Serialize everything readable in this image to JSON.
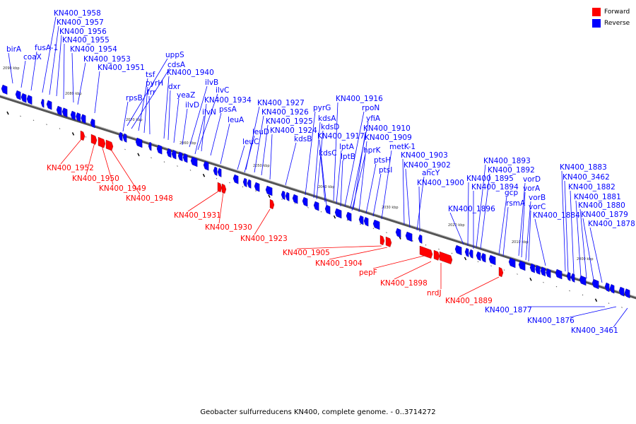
{
  "caption": "Geobacter sulfurreducens KN400, complete genome. - 0..3714272",
  "legend": [
    {
      "label": "Forward",
      "color": "#ff0000"
    },
    {
      "label": "Reverse",
      "color": "#0000ff"
    }
  ],
  "colors": {
    "forward": "#ff0000",
    "reverse": "#0000ff",
    "backbone": "#666666"
  },
  "scale_labels": [
    "2090 kbp",
    "2080 kbp",
    "2070 kbp",
    "2060 kbp",
    "2050 kbp",
    "2040 kbp",
    "2030 kbp",
    "2020 kbp",
    "2010 kbp",
    "2000 kbp"
  ],
  "reverse_genes": [
    "birA",
    "coaX",
    "fusA-1",
    "KN400_1958",
    "KN400_1957",
    "KN400_1956",
    "KN400_1955",
    "KN400_1954",
    "KN400_1953",
    "KN400_1951",
    "uppS",
    "cdsA",
    "tsf",
    "pyrH",
    "frr",
    "rpsB",
    "KN400_1940",
    "dxr",
    "yeaZ",
    "ilvD",
    "ilvB",
    "ilvC",
    "KN400_1934",
    "pssA",
    "ilvN",
    "leuA",
    "KN400_1927",
    "KN400_1926",
    "KN400_1925",
    "KN400_1924",
    "leuD",
    "leuC",
    "kdsB",
    "KN400_1916",
    "rpoN",
    "yfiA",
    "pyrG",
    "kdsA",
    "kdsD",
    "KN400_1917",
    "lptA",
    "kdsC",
    "lptB",
    "KN400_1910",
    "KN400_1909",
    "hprK",
    "ptsH",
    "ptsI",
    "metK-1",
    "KN400_1903",
    "KN400_1902",
    "ahcY",
    "KN400_1900",
    "KN400_1893",
    "KN400_1892",
    "KN400_1895",
    "KN400_1894",
    "vorD",
    "vorA",
    "KN400_1896",
    "gcp",
    "rsmA",
    "vorB",
    "vorC",
    "KN400_1884",
    "KN400_1883",
    "KN400_3462",
    "KN400_1882",
    "KN400_1881",
    "KN400_1880",
    "KN400_1879",
    "KN400_1878",
    "KN400_1877",
    "KN400_1876",
    "KN400_3461"
  ],
  "forward_genes": [
    "KN400_1952",
    "KN400_1950",
    "KN400_1949",
    "KN400_1948",
    "KN400_1931",
    "KN400_1930",
    "KN400_1923",
    "KN400_1905",
    "KN400_1904",
    "pepF",
    "KN400_1898",
    "nrdJ",
    "KN400_1889"
  ]
}
